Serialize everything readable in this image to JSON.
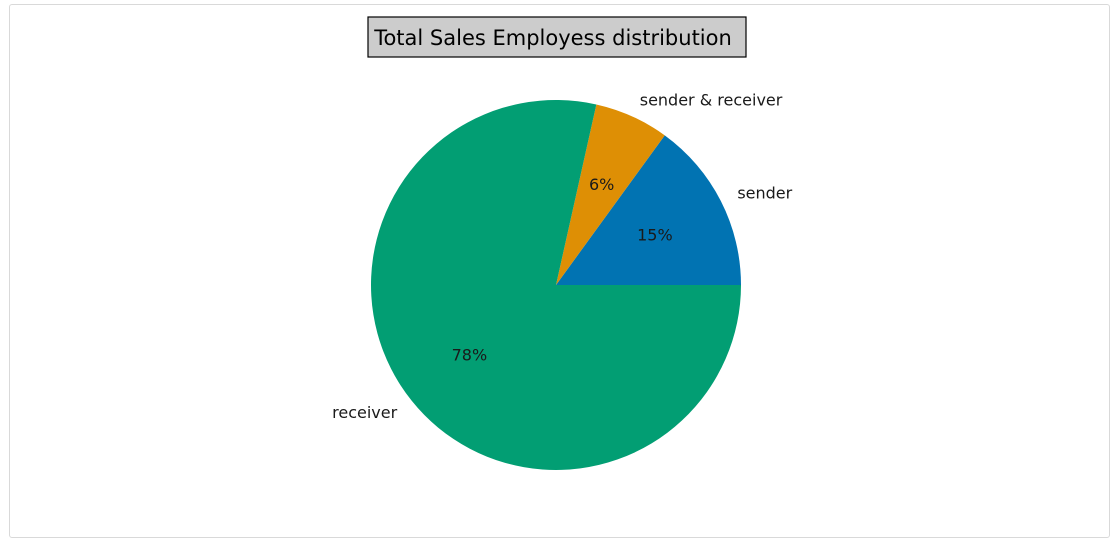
{
  "chart_data": {
    "type": "pie",
    "title": "Total Sales Employess distribution",
    "slices": [
      {
        "label": "sender",
        "value": 15,
        "pct_label": "15%",
        "color": "#0173b2"
      },
      {
        "label": "sender & receiver",
        "value": 6.5,
        "pct_label": "6%",
        "color": "#de8f05"
      },
      {
        "label": "receiver",
        "value": 78.5,
        "pct_label": "78%",
        "color": "#029e73"
      }
    ],
    "start_angle_deg": 0,
    "direction": "counterclockwise",
    "title_box_color": "#cccccc"
  }
}
